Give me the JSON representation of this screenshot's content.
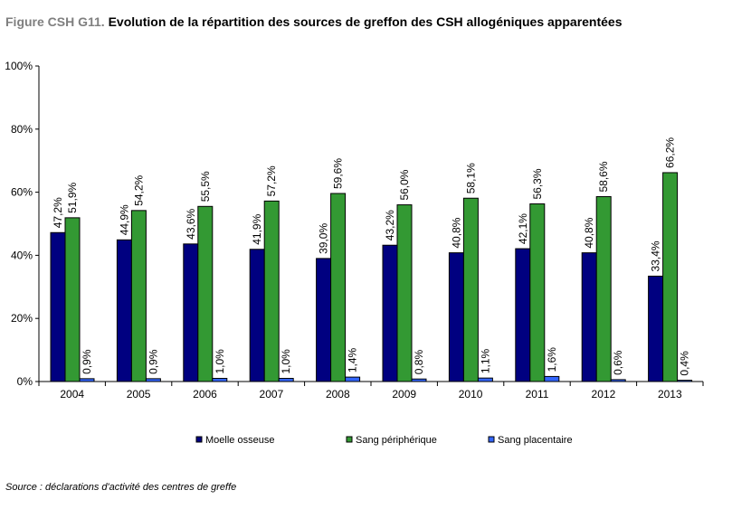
{
  "title": {
    "prefix": "Figure CSH G11.",
    "text": "Evolution de la répartition des sources de greffon des CSH allogéniques apparentées"
  },
  "source_note": "Source : déclarations d'activité des centres de greffe",
  "colors": {
    "moelle": "#000080",
    "sang_peripherique": "#339933",
    "sang_placentaire": "#3366ff"
  },
  "chart_data": {
    "type": "bar",
    "title": "",
    "xlabel": "",
    "ylabel": "",
    "ylim": [
      0,
      100
    ],
    "y_ticks": [
      "0%",
      "20%",
      "40%",
      "60%",
      "80%",
      "100%"
    ],
    "grid": false,
    "legend_position": "bottom",
    "categories": [
      "2004",
      "2005",
      "2006",
      "2007",
      "2008",
      "2009",
      "2010",
      "2011",
      "2012",
      "2013"
    ],
    "series": [
      {
        "name": "Moelle osseuse",
        "values": [
          47.2,
          44.9,
          43.6,
          41.9,
          39.0,
          43.2,
          40.8,
          42.1,
          40.8,
          33.4
        ],
        "labels": [
          "47,2%",
          "44,9%",
          "43,6%",
          "41,9%",
          "39,0%",
          "43,2%",
          "40,8%",
          "42,1%",
          "40,8%",
          "33,4%"
        ]
      },
      {
        "name": "Sang périphérique",
        "values": [
          51.9,
          54.2,
          55.5,
          57.2,
          59.6,
          56.0,
          58.1,
          56.3,
          58.6,
          66.2
        ],
        "labels": [
          "51,9%",
          "54,2%",
          "55,5%",
          "57,2%",
          "59,6%",
          "56,0%",
          "58,1%",
          "56,3%",
          "58,6%",
          "66,2%"
        ]
      },
      {
        "name": "Sang placentaire",
        "values": [
          0.9,
          0.9,
          1.0,
          1.0,
          1.4,
          0.8,
          1.1,
          1.6,
          0.6,
          0.4
        ],
        "labels": [
          "0,9%",
          "0,9%",
          "1,0%",
          "1,0%",
          "1,4%",
          "0,8%",
          "1,1%",
          "1,6%",
          "0,6%",
          "0,4%"
        ]
      }
    ]
  }
}
